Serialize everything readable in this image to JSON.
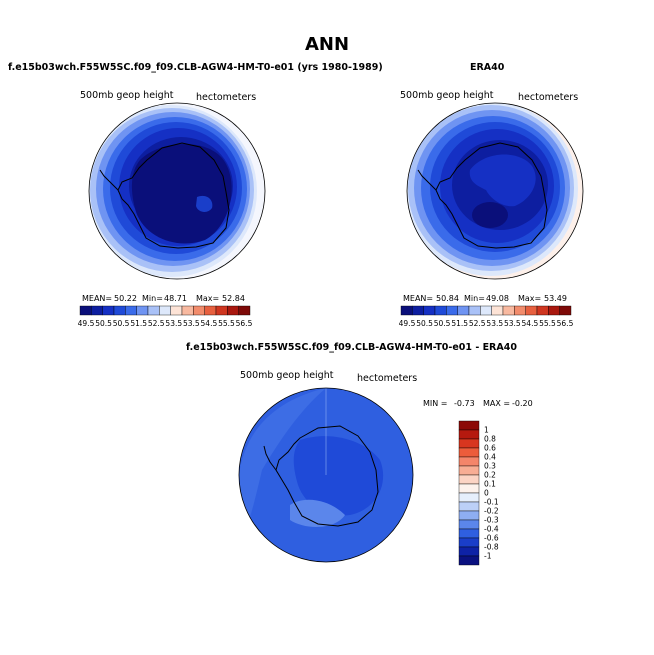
{
  "title": "ANN",
  "panels": [
    {
      "title": "f.e15b03wch.F55W5SC.f09_f09.CLB-AGW4-HM-T0-e01 (yrs 1980-1989)",
      "variable": "500mb geop height",
      "units": "hectometers",
      "stats": {
        "mean_label": "MEAN=",
        "mean": "50.22",
        "min_label": "Min=",
        "min": "48.71",
        "max_label": "Max=",
        "max": "52.84"
      }
    },
    {
      "title": "ERA40",
      "variable": "500mb geop height",
      "units": "hectometers",
      "stats": {
        "mean_label": "MEAN=",
        "mean": "50.84",
        "min_label": "Min=",
        "min": "49.08",
        "max_label": "Max=",
        "max": "53.49"
      }
    },
    {
      "title": "f.e15b03wch.F55W5SC.f09_f09.CLB-AGW4-HM-T0-e01 - ERA40",
      "variable": "500mb geop height",
      "units": "hectometers",
      "stats": {
        "min_label": "MIN =",
        "min": "-0.73",
        "max_label": "MAX =",
        "max": "-0.20"
      }
    }
  ],
  "colorbar_abs": {
    "labels": [
      "49.5",
      "50.5",
      "50.5",
      "51.5",
      "52.5",
      "53.5",
      "53.5",
      "54.5",
      "55.5",
      "56.5"
    ],
    "colors": [
      "#0a0f7a",
      "#0d1ea0",
      "#1530c4",
      "#1f4ad8",
      "#3a6bea",
      "#6f94f2",
      "#a9c1f7",
      "#dde8fb",
      "#fde3d6",
      "#f8b9a0",
      "#f28c6c",
      "#e7603f",
      "#cf3620",
      "#a9180f",
      "#7e0a08"
    ]
  },
  "colorbar_diff": {
    "labels": [
      "1",
      "0.8",
      "0.6",
      "0.4",
      "0.3",
      "0.2",
      "0.1",
      "0",
      "-0.1",
      "-0.2",
      "-0.3",
      "-0.4",
      "-0.6",
      "-0.8",
      "-1"
    ],
    "colors": [
      "#8c0a07",
      "#b5190f",
      "#d8361f",
      "#ec5c3b",
      "#f4856a",
      "#f8ad94",
      "#fcd4c4",
      "#fdf2ec",
      "#e6effc",
      "#bcd0f7",
      "#8eaef2",
      "#5b86eb",
      "#2f5fe0",
      "#1a3ec9",
      "#0e22a6",
      "#0a1180"
    ]
  },
  "chart_data": [
    {
      "type": "heatmap",
      "title": "f.e15b03wch.F55W5SC.f09_f09.CLB-AGW4-HM-T0-e01 (yrs 1980-1989)",
      "subtitle": "500mb geop height",
      "units": "hectometers",
      "projection": "south polar stereographic",
      "mean": 50.22,
      "min": 48.71,
      "max": 52.84,
      "contour_levels": [
        49.5,
        50,
        50.5,
        51,
        51.5,
        52,
        52.5,
        53,
        53.5,
        54,
        54.5,
        55,
        55.5,
        56,
        56.5
      ]
    },
    {
      "type": "heatmap",
      "title": "ERA40",
      "subtitle": "500mb geop height",
      "units": "hectometers",
      "projection": "south polar stereographic",
      "mean": 50.84,
      "min": 49.08,
      "max": 53.49,
      "contour_levels": [
        49.5,
        50,
        50.5,
        51,
        51.5,
        52,
        52.5,
        53,
        53.5,
        54,
        54.5,
        55,
        55.5,
        56,
        56.5
      ]
    },
    {
      "type": "heatmap",
      "title": "f.e15b03wch.F55W5SC.f09_f09.CLB-AGW4-HM-T0-e01 - ERA40",
      "subtitle": "500mb geop height",
      "units": "hectometers",
      "projection": "south polar stereographic",
      "min": -0.73,
      "max": -0.2,
      "contour_levels": [
        -1,
        -0.8,
        -0.6,
        -0.4,
        -0.3,
        -0.2,
        -0.1,
        0,
        0.1,
        0.2,
        0.3,
        0.4,
        0.6,
        0.8,
        1
      ]
    }
  ]
}
